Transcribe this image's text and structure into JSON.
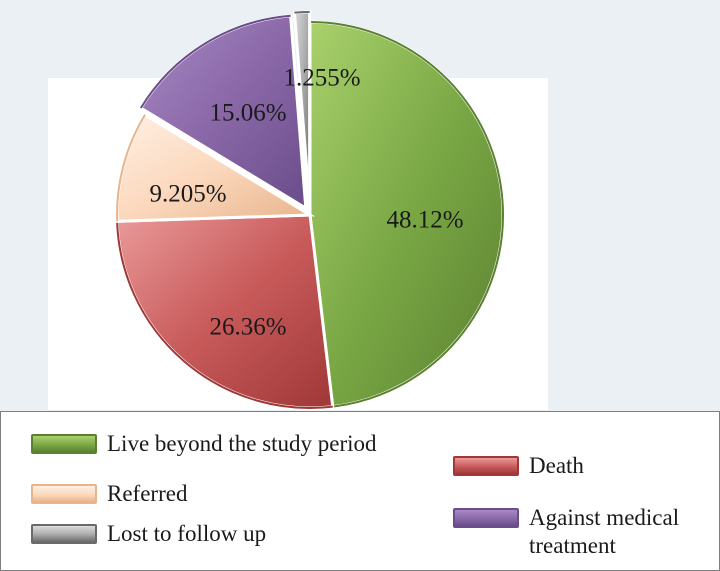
{
  "chart_data": {
    "type": "pie",
    "slices": [
      {
        "label": "Live beyond the study period",
        "value": 48.12,
        "display": "48.12%",
        "color": "#7aa845",
        "dark": "#5b8030",
        "light": "#a9d16c"
      },
      {
        "label": "Death",
        "value": 26.36,
        "display": "26.36%",
        "color": "#c85a5a",
        "dark": "#a03838",
        "light": "#ea9a9a"
      },
      {
        "label": "Referred",
        "value": 9.205,
        "display": "9.205%",
        "color": "#fbd8bd",
        "dark": "#e8b48c",
        "light": "#fff0e4"
      },
      {
        "label": "Against medical treatment",
        "value": 15.06,
        "display": "15.06%",
        "color": "#8a68a8",
        "dark": "#6a4c8a",
        "light": "#a888c4"
      },
      {
        "label": "Lost to follow up",
        "value": 1.255,
        "display": "1.255%",
        "color": "#a8a8a8",
        "dark": "#6a6a6a",
        "light": "#dcdcdc"
      }
    ],
    "legend_placement": "bottom"
  }
}
